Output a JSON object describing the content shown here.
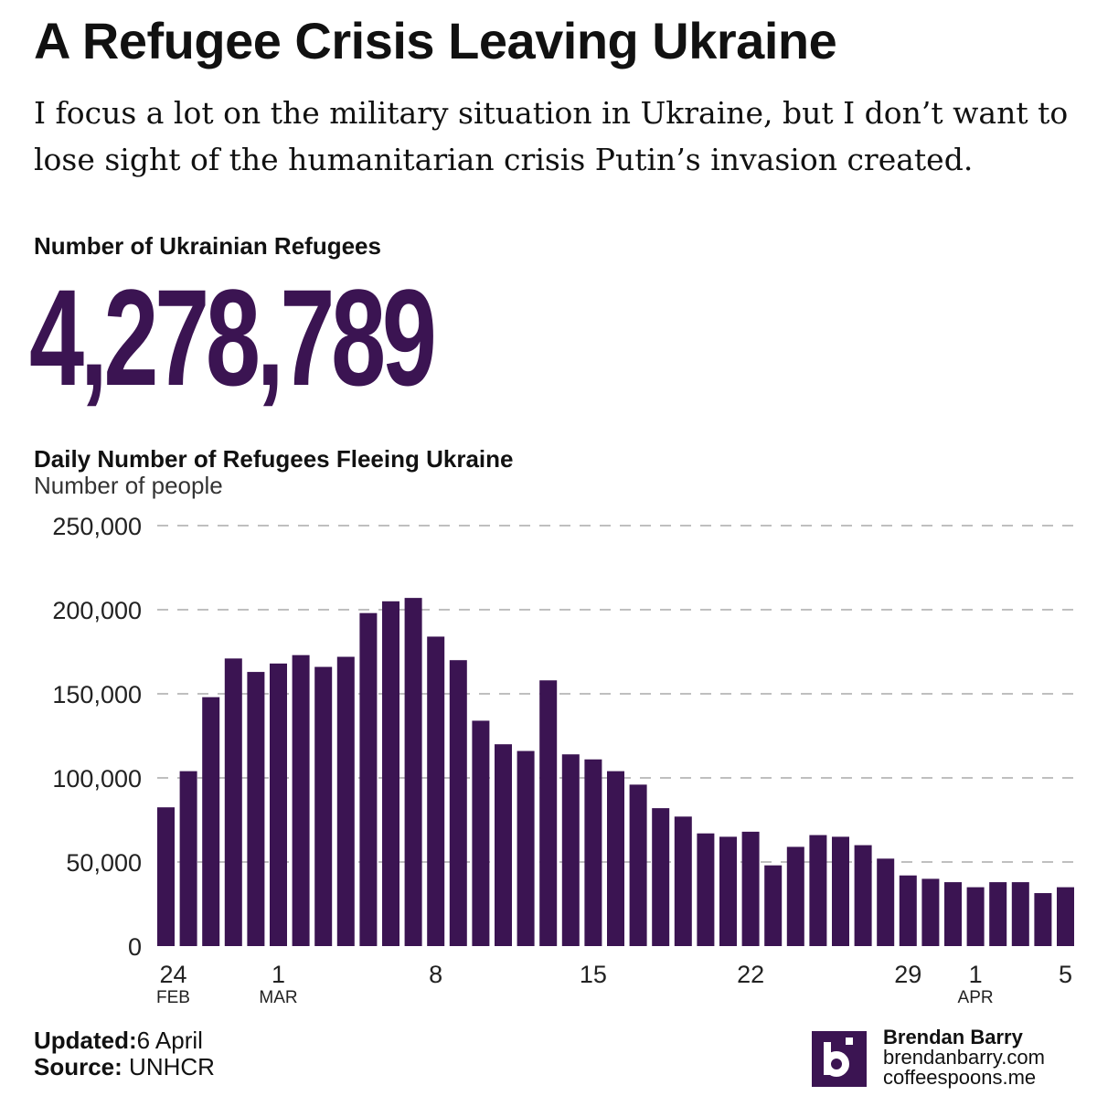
{
  "title": "A Refugee Crisis Leaving Ukraine",
  "subtitle": "I focus a lot on the military situation in Ukraine, but I don’t want to lose sight of the humanitarian crisis Putin’s invasion created.",
  "kpi": {
    "label": "Number of Ukrainian Refugees",
    "value": "4,278,789"
  },
  "chart_data": {
    "type": "bar",
    "title": "Daily Number of Refugees Fleeing Ukraine",
    "ylabel": "Number of people",
    "ylim": [
      0,
      250000
    ],
    "yticks": [
      0,
      50000,
      100000,
      150000,
      200000,
      250000
    ],
    "ytick_labels": [
      "0",
      "50,000",
      "100,000",
      "150,000",
      "200,000",
      "250,000"
    ],
    "grid": true,
    "bar_color": "#3b1452",
    "categories": [
      "Feb 24",
      "Feb 25",
      "Feb 26",
      "Feb 27",
      "Feb 28",
      "Mar 1",
      "Mar 2",
      "Mar 3",
      "Mar 4",
      "Mar 5",
      "Mar 6",
      "Mar 7",
      "Mar 8",
      "Mar 9",
      "Mar 10",
      "Mar 11",
      "Mar 12",
      "Mar 13",
      "Mar 14",
      "Mar 15",
      "Mar 16",
      "Mar 17",
      "Mar 18",
      "Mar 19",
      "Mar 20",
      "Mar 21",
      "Mar 22",
      "Mar 23",
      "Mar 24",
      "Mar 25",
      "Mar 26",
      "Mar 27",
      "Mar 28",
      "Mar 29",
      "Mar 30",
      "Mar 31",
      "Apr 1",
      "Apr 2",
      "Apr 3",
      "Apr 4",
      "Apr 5"
    ],
    "values": [
      82500,
      104000,
      148000,
      171000,
      163000,
      168000,
      173000,
      166000,
      172000,
      198000,
      205000,
      207000,
      184000,
      170000,
      134000,
      120000,
      116000,
      158000,
      114000,
      111000,
      104000,
      96000,
      82000,
      77000,
      67000,
      65000,
      68000,
      48000,
      59000,
      66000,
      65000,
      60000,
      52000,
      42000,
      40000,
      38000,
      35000,
      38000,
      38000,
      31500,
      35000
    ],
    "xticks": [
      {
        "index": 0,
        "label": "24",
        "sub": "FEB"
      },
      {
        "index": 5,
        "label": "1",
        "sub": "MAR"
      },
      {
        "index": 12,
        "label": "8",
        "sub": ""
      },
      {
        "index": 19,
        "label": "15",
        "sub": ""
      },
      {
        "index": 26,
        "label": "22",
        "sub": ""
      },
      {
        "index": 33,
        "label": "29",
        "sub": ""
      },
      {
        "index": 36,
        "label": "1",
        "sub": "APR"
      },
      {
        "index": 40,
        "label": "5",
        "sub": ""
      }
    ]
  },
  "footer": {
    "updated_label": "Updated:",
    "updated_value": "6 April",
    "source_label": "Source:",
    "source_value": "UNHCR"
  },
  "credits": {
    "logo_icon": "b-logo",
    "name": "Brendan Barry",
    "site1": "brendanbarry.com",
    "site2": "coffeespoons.me"
  }
}
